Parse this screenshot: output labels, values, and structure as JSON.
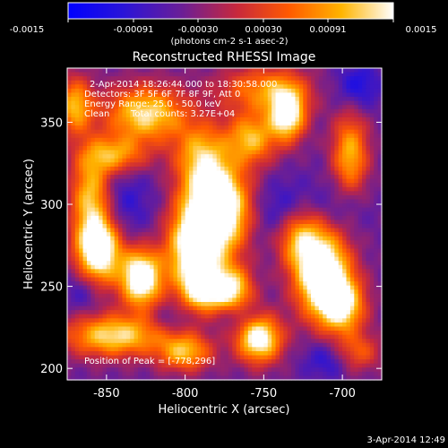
{
  "chart_data": {
    "type": "heatmap",
    "title": "Reconstructed RHESSI Image",
    "xlabel": "Heliocentric X (arcsec)",
    "ylabel": "Heliocentric Y (arcsec)",
    "xlim": [
      -875,
      -675
    ],
    "ylim": [
      193,
      383
    ],
    "xticks": [
      -850,
      -800,
      -750,
      -700
    ],
    "yticks": [
      200,
      250,
      300,
      350
    ],
    "colorbar": {
      "range": [
        -0.0015,
        0.0015
      ],
      "ticks": [
        "-0.0015",
        "-0.00091",
        "-0.00030",
        "0.00030",
        "0.00091",
        "0.0015"
      ],
      "units": "(photons cm-2 s-1 asec-2)",
      "colors": [
        "#0000ff",
        "#2a14d8",
        "#6b1e96",
        "#c8283c",
        "#ff5a00",
        "#ffb400",
        "#ffffff"
      ]
    },
    "annotations": {
      "time": "2-Apr-2014 18:26:44.000 to 18:30:58.000",
      "detectors": "Detectors: 3F 5F 6F 7F 8F 9F, Att 0",
      "energy": "Energy Range: 25.0 - 50.0 keV",
      "method": "Clean",
      "counts": "Total counts: 3.27E+04",
      "peak": "Position of Peak = [-778,296]"
    },
    "peak": {
      "x": -778,
      "y": 296
    },
    "blobs": [
      {
        "x": -780,
        "y": 297,
        "sx": 14,
        "sy": 18,
        "a": 1.0
      },
      {
        "x": -795,
        "y": 270,
        "sx": 12,
        "sy": 18,
        "a": 0.7
      },
      {
        "x": -788,
        "y": 248,
        "sx": 9,
        "sy": 9,
        "a": 0.55
      },
      {
        "x": -770,
        "y": 248,
        "sx": 9,
        "sy": 10,
        "a": 0.6
      },
      {
        "x": -790,
        "y": 330,
        "sx": 12,
        "sy": 14,
        "a": 0.45
      },
      {
        "x": -828,
        "y": 255,
        "sx": 9,
        "sy": 12,
        "a": 0.85
      },
      {
        "x": -855,
        "y": 272,
        "sx": 10,
        "sy": 14,
        "a": 0.85
      },
      {
        "x": -860,
        "y": 305,
        "sx": 9,
        "sy": 18,
        "a": 0.55
      },
      {
        "x": -845,
        "y": 330,
        "sx": 14,
        "sy": 8,
        "a": 0.45
      },
      {
        "x": -825,
        "y": 355,
        "sx": 18,
        "sy": 12,
        "a": 0.6
      },
      {
        "x": -870,
        "y": 360,
        "sx": 8,
        "sy": 12,
        "a": 0.5
      },
      {
        "x": -845,
        "y": 220,
        "sx": 22,
        "sy": 9,
        "a": 0.6
      },
      {
        "x": -800,
        "y": 210,
        "sx": 12,
        "sy": 8,
        "a": 0.5
      },
      {
        "x": -753,
        "y": 218,
        "sx": 10,
        "sy": 10,
        "a": 0.75
      },
      {
        "x": -735,
        "y": 355,
        "sx": 8,
        "sy": 11,
        "a": 0.75
      },
      {
        "x": -758,
        "y": 340,
        "sx": 11,
        "sy": 11,
        "a": 0.5
      },
      {
        "x": -713,
        "y": 258,
        "sx": 12,
        "sy": 18,
        "a": 0.9
      },
      {
        "x": -700,
        "y": 238,
        "sx": 10,
        "sy": 12,
        "a": 0.6
      },
      {
        "x": -728,
        "y": 280,
        "sx": 10,
        "sy": 12,
        "a": 0.45
      },
      {
        "x": -695,
        "y": 330,
        "sx": 8,
        "sy": 18,
        "a": 0.5
      },
      {
        "x": -750,
        "y": 370,
        "sx": 20,
        "sy": 10,
        "a": 0.4
      },
      {
        "x": -690,
        "y": 210,
        "sx": 10,
        "sy": 8,
        "a": 0.3
      }
    ],
    "dips": [
      {
        "x": -840,
        "y": 300,
        "sx": 14,
        "sy": 16,
        "a": 0.55
      },
      {
        "x": -738,
        "y": 295,
        "sx": 14,
        "sy": 14,
        "a": 0.6
      },
      {
        "x": -700,
        "y": 300,
        "sx": 12,
        "sy": 12,
        "a": 0.4
      },
      {
        "x": -690,
        "y": 372,
        "sx": 10,
        "sy": 10,
        "a": 0.75
      },
      {
        "x": -710,
        "y": 205,
        "sx": 10,
        "sy": 8,
        "a": 0.6
      },
      {
        "x": -865,
        "y": 248,
        "sx": 8,
        "sy": 10,
        "a": 0.5
      },
      {
        "x": -765,
        "y": 232,
        "sx": 8,
        "sy": 6,
        "a": 0.45
      },
      {
        "x": -810,
        "y": 230,
        "sx": 8,
        "sy": 6,
        "a": 0.35
      }
    ]
  },
  "footer": {
    "timestamp": "3-Apr-2014 12:49"
  }
}
